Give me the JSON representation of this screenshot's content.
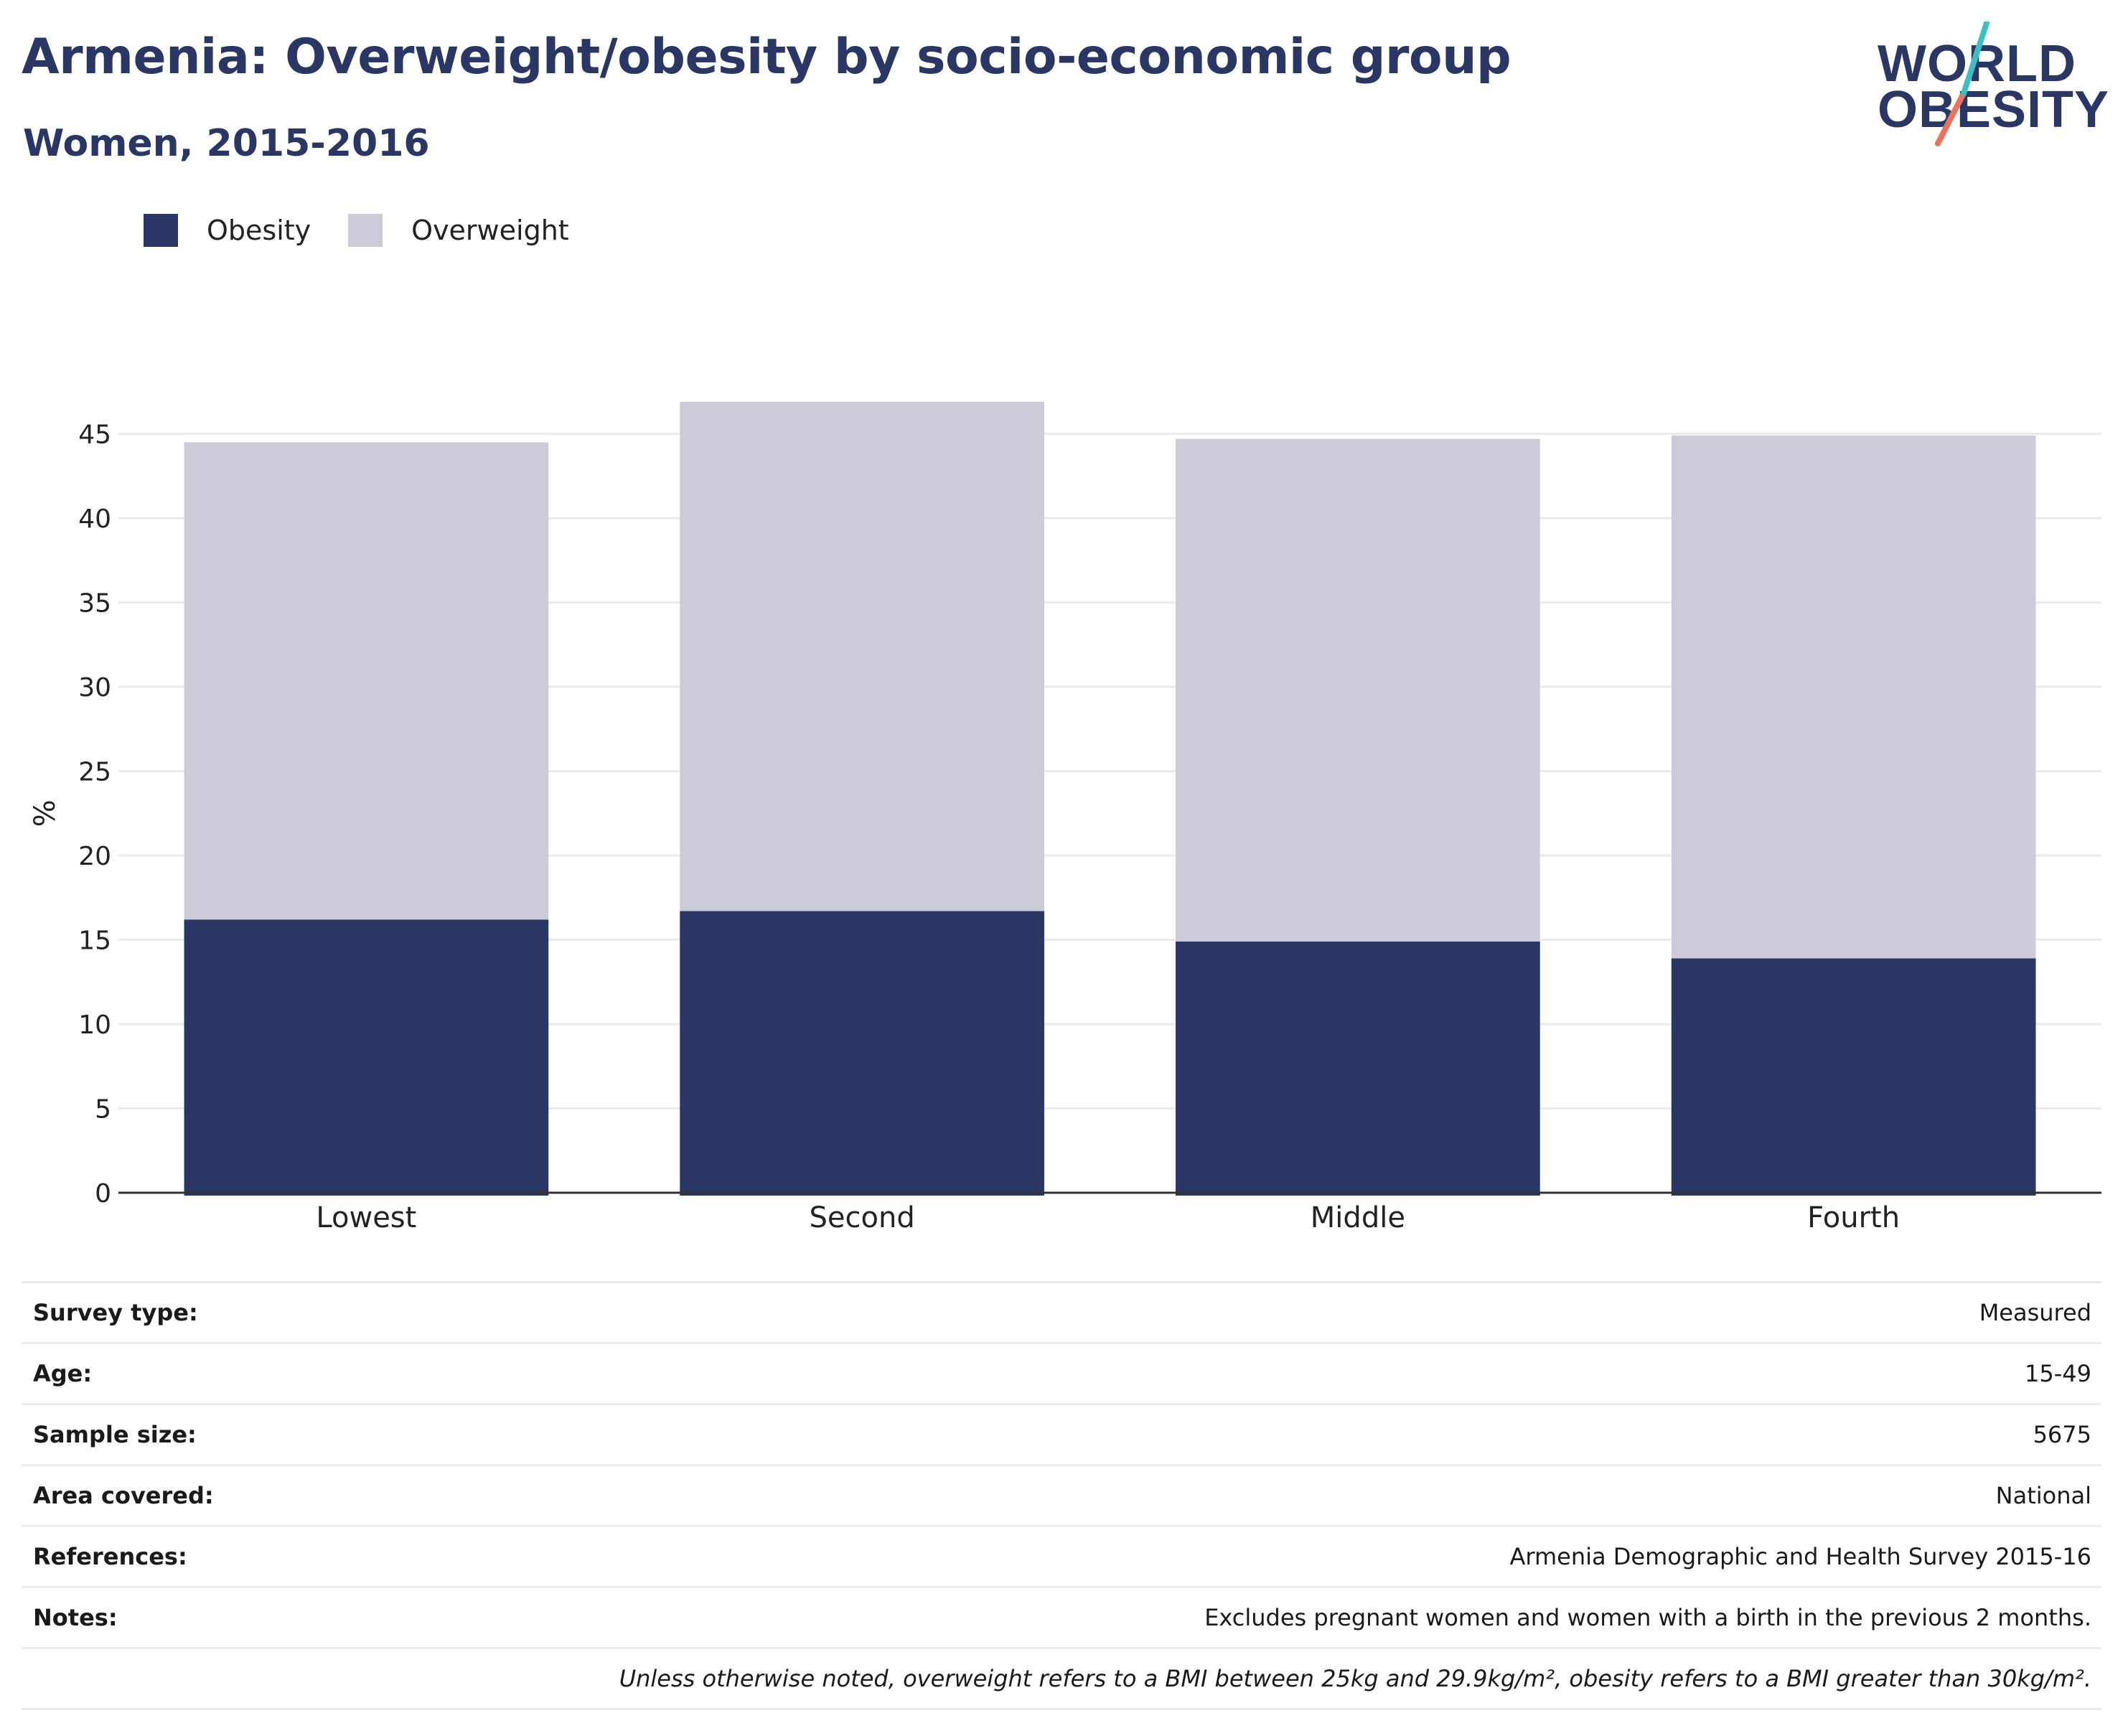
{
  "title": "Armenia: Overweight/obesity by socio-economic group",
  "subtitle": "Women, 2015-2016",
  "logo": {
    "line1": "WORLD",
    "line2": "OBESITY"
  },
  "colors": {
    "obesity": "#2a3663",
    "overweight": "#cbccd8",
    "logo_teal": "#3fbfc0",
    "logo_coral": "#e8735e",
    "gridline": "#eaeaea"
  },
  "chart_data": {
    "type": "bar",
    "stacked": true,
    "categories": [
      "Lowest",
      "Second",
      "Middle",
      "Fourth"
    ],
    "series": [
      {
        "name": "Obesity",
        "values": [
          16.2,
          16.7,
          14.9,
          13.9
        ]
      },
      {
        "name": "Overweight",
        "values": [
          28.3,
          30.2,
          29.8,
          31.0
        ]
      }
    ],
    "ylabel": "%",
    "ylim": [
      0,
      45
    ],
    "yticks": [
      0,
      5,
      10,
      15,
      20,
      25,
      30,
      35,
      40,
      45
    ],
    "grid": true,
    "legend_position": "top-left"
  },
  "meta": [
    {
      "label": "Survey type:",
      "value": "Measured"
    },
    {
      "label": "Age:",
      "value": "15-49"
    },
    {
      "label": "Sample size:",
      "value": "5675"
    },
    {
      "label": "Area covered:",
      "value": "National"
    },
    {
      "label": "References:",
      "value": "Armenia Demographic and Health Survey 2015-16"
    },
    {
      "label": "Notes:",
      "value": "Excludes pregnant women and women with a birth in the previous 2 months."
    }
  ],
  "footnote": "Unless otherwise noted, overweight refers to a BMI between 25kg and 29.9kg/m², obesity refers to a BMI greater than 30kg/m²."
}
